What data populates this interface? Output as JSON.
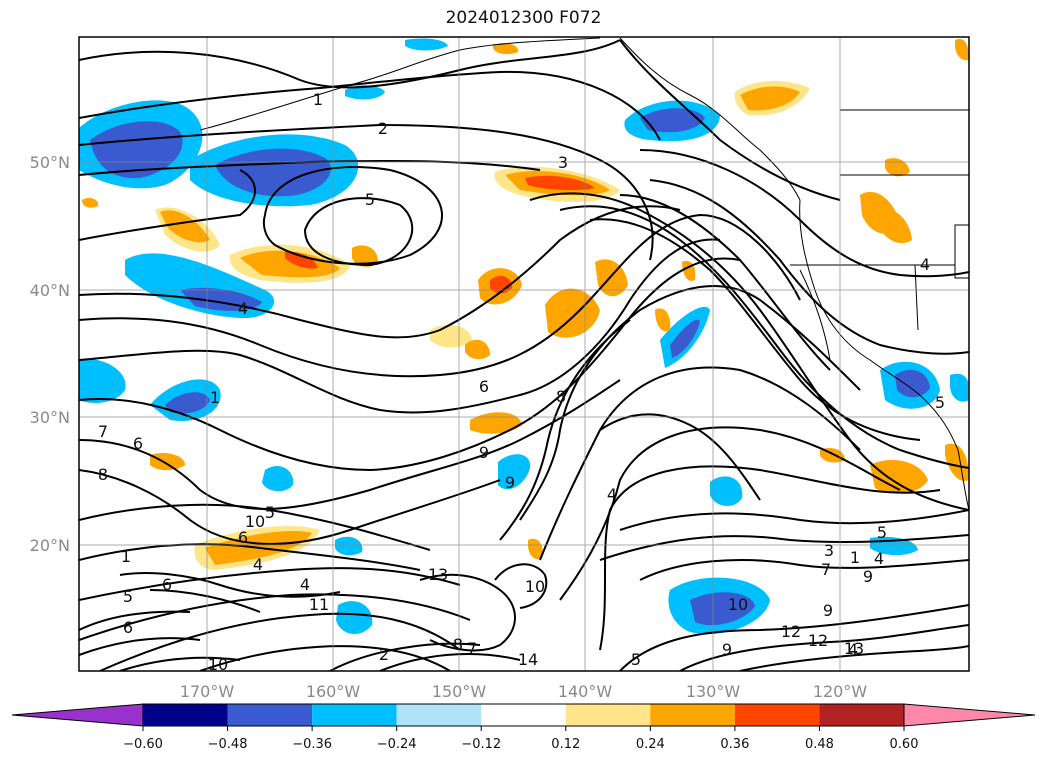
{
  "title": "2024012300 F072",
  "map": {
    "lat_ticks": [
      "50°N",
      "40°N",
      "30°N",
      "20°N"
    ],
    "lon_ticks": [
      "170°W",
      "160°W",
      "150°W",
      "140°W",
      "130°W",
      "120°W"
    ],
    "contour_labels": [
      "1",
      "2",
      "3",
      "5",
      "4",
      "1",
      "6",
      "8",
      "9",
      "7",
      "6",
      "8",
      "9",
      "10",
      "5",
      "6",
      "4",
      "1",
      "6",
      "5",
      "4",
      "11",
      "7",
      "13",
      "10",
      "4",
      "12",
      "14",
      "9",
      "5",
      "8",
      "10",
      "9",
      "4",
      "2",
      "3",
      "1",
      "5",
      "7",
      "9",
      "12",
      "13",
      "4",
      "5",
      "4",
      "6",
      "10"
    ]
  },
  "colorbar": {
    "ticks": [
      "−0.60",
      "−0.48",
      "−0.36",
      "−0.24",
      "−0.12",
      "0.12",
      "0.24",
      "0.36",
      "0.48",
      "0.60"
    ],
    "colors": [
      "#9932cc",
      "#00008b",
      "#3a5bd0",
      "#00bfff",
      "#aee3f9",
      "#ffffff",
      "#ffe58a",
      "#ffa500",
      "#ff4500",
      "#b22222",
      "#ff88aa"
    ]
  },
  "palette": {
    "blue_light": "#aee3f9",
    "blue_mid": "#00bfff",
    "blue_dark": "#3a5bd0",
    "yellow": "#ffe58a",
    "orange": "#ffa500",
    "red": "#ff4500"
  }
}
